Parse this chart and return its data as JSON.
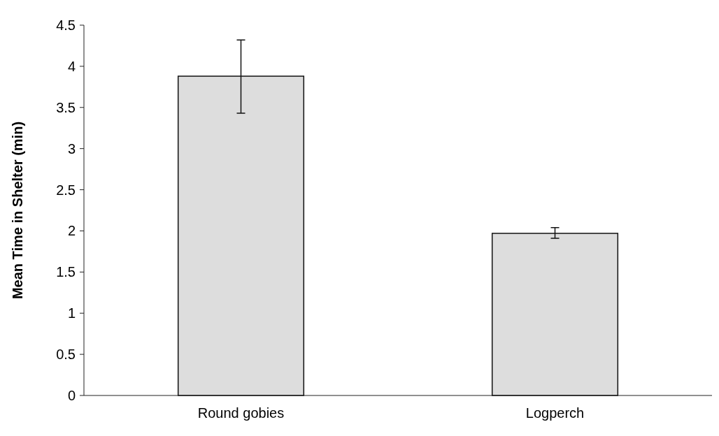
{
  "chart_data": {
    "type": "bar",
    "ylabel": "Mean Time in Shelter (min)",
    "categories": [
      "Round gobies",
      "Logperch"
    ],
    "values": [
      3.88,
      1.97
    ],
    "errors": [
      [
        3.43,
        4.32
      ],
      [
        1.91,
        2.04
      ]
    ],
    "color": "#dddddd",
    "ylim": [
      0,
      4.5
    ],
    "yticks": [
      0,
      0.5,
      1,
      1.5,
      2,
      2.5,
      3,
      3.5,
      4,
      4.5
    ]
  }
}
